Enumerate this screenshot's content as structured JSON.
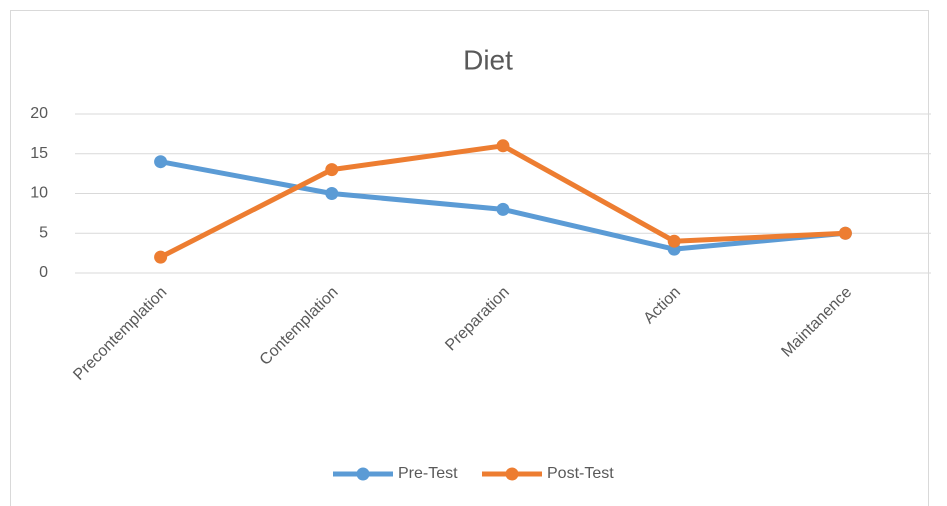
{
  "chart_data": {
    "type": "line",
    "title": "Diet",
    "categories": [
      "Precontemplation",
      "Contemplation",
      "Preparation",
      "Action",
      "Maintanence"
    ],
    "series": [
      {
        "name": "Pre-Test",
        "color": "#5b9bd5",
        "values": [
          14,
          10,
          8,
          3,
          5
        ]
      },
      {
        "name": "Post-Test",
        "color": "#ed7d31",
        "values": [
          2,
          13,
          16,
          4,
          5
        ]
      }
    ],
    "ylim": [
      0,
      20
    ],
    "yticks": [
      0,
      5,
      10,
      15,
      20
    ],
    "grid": true,
    "legend": "bottom"
  }
}
